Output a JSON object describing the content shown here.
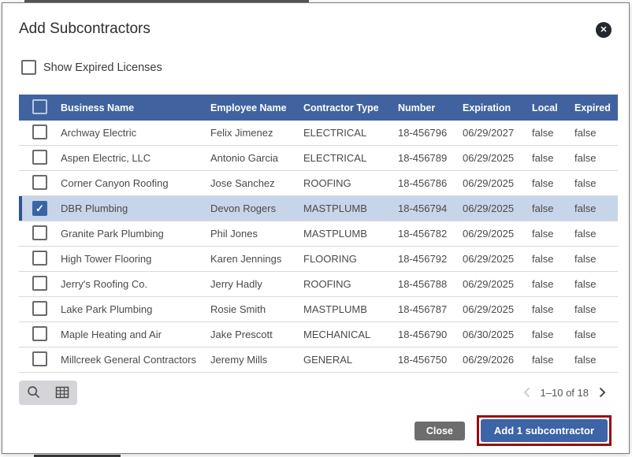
{
  "dialog": {
    "title": "Add Subcontractors",
    "show_expired_label": "Show Expired Licenses"
  },
  "table": {
    "columns": [
      "Business Name",
      "Employee Name",
      "Contractor Type",
      "Number",
      "Expiration",
      "Local",
      "Expired"
    ],
    "rows": [
      {
        "business": "Archway Electric",
        "employee": "Felix Jimenez",
        "type": "ELECTRICAL",
        "number": "18-456796",
        "expiration": "06/29/2027",
        "local": "false",
        "expired": "false",
        "selected": false
      },
      {
        "business": "Aspen Electric, LLC",
        "employee": "Antonio Garcia",
        "type": "ELECTRICAL",
        "number": "18-456789",
        "expiration": "06/29/2025",
        "local": "false",
        "expired": "false",
        "selected": false
      },
      {
        "business": "Corner Canyon Roofing",
        "employee": "Jose Sanchez",
        "type": "ROOFING",
        "number": "18-456786",
        "expiration": "06/29/2025",
        "local": "false",
        "expired": "false",
        "selected": false
      },
      {
        "business": "DBR Plumbing",
        "employee": "Devon Rogers",
        "type": "MASTPLUMB",
        "number": "18-456794",
        "expiration": "06/29/2025",
        "local": "false",
        "expired": "false",
        "selected": true
      },
      {
        "business": "Granite Park Plumbing",
        "employee": "Phil Jones",
        "type": "MASTPLUMB",
        "number": "18-456782",
        "expiration": "06/29/2025",
        "local": "false",
        "expired": "false",
        "selected": false
      },
      {
        "business": "High Tower Flooring",
        "employee": "Karen Jennings",
        "type": "FLOORING",
        "number": "18-456792",
        "expiration": "06/29/2025",
        "local": "false",
        "expired": "false",
        "selected": false
      },
      {
        "business": "Jerry's Roofing Co.",
        "employee": "Jerry Hadly",
        "type": "ROOFING",
        "number": "18-456788",
        "expiration": "06/29/2025",
        "local": "false",
        "expired": "false",
        "selected": false
      },
      {
        "business": "Lake Park Plumbing",
        "employee": "Rosie Smith",
        "type": "MASTPLUMB",
        "number": "18-456787",
        "expiration": "06/29/2025",
        "local": "false",
        "expired": "false",
        "selected": false
      },
      {
        "business": "Maple Heating and Air",
        "employee": "Jake Prescott",
        "type": "MECHANICAL",
        "number": "18-456790",
        "expiration": "06/30/2025",
        "local": "false",
        "expired": "false",
        "selected": false
      },
      {
        "business": "Millcreek General Contractors",
        "employee": "Jeremy Mills",
        "type": "GENERAL",
        "number": "18-456750",
        "expiration": "06/29/2026",
        "local": "false",
        "expired": "false",
        "selected": false
      }
    ]
  },
  "footer": {
    "pagination": "1–10 of 18",
    "close_label": "Close",
    "add_label": "Add 1 subcontractor"
  },
  "icons": {
    "close": "✕",
    "check": "✓"
  },
  "colors": {
    "header_blue": "#40639f",
    "selected_row_bg": "#c7d5ea",
    "selected_accent": "#2d5492",
    "button_blue": "#3c64a6",
    "button_gray": "#6d6d6d",
    "highlight_red": "#9b0a0a"
  }
}
